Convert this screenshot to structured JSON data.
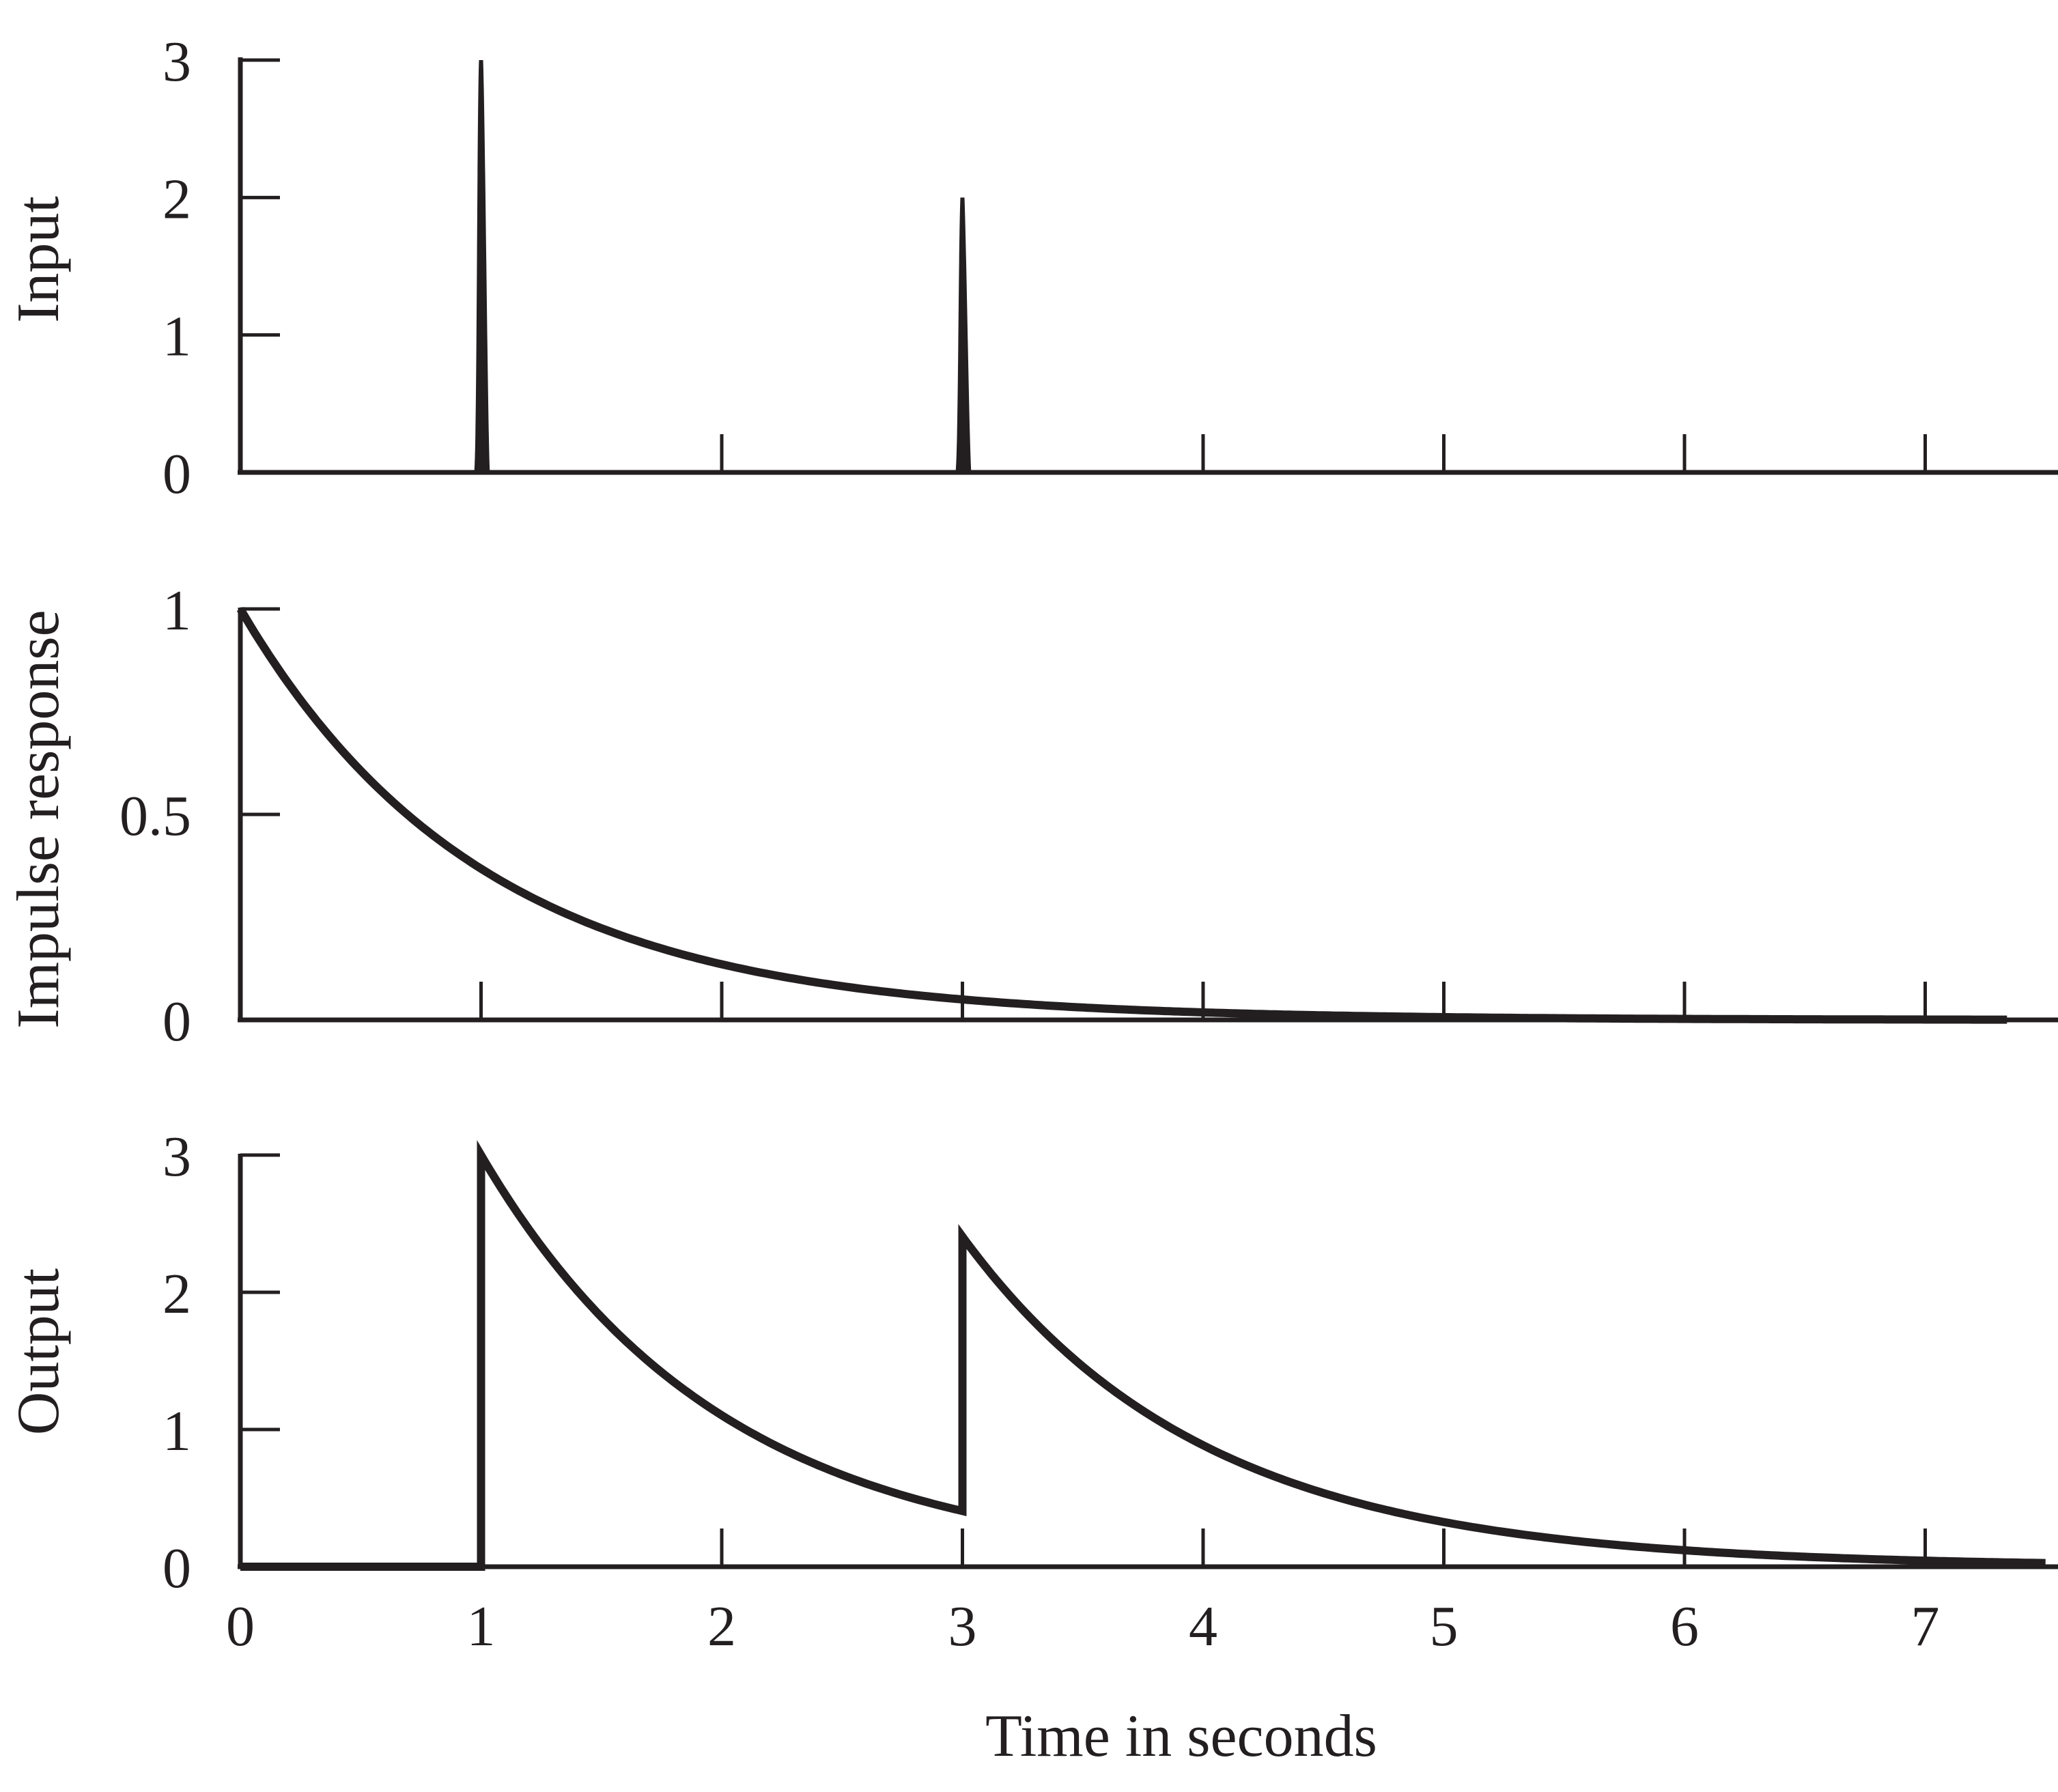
{
  "chart_data": [
    {
      "type": "line",
      "ylabel": "Input",
      "xlim": [
        0,
        7.5
      ],
      "ylim": [
        0,
        3
      ],
      "yticks": [
        0,
        1,
        2,
        3
      ],
      "yticklabels": [
        "0",
        "1",
        "2",
        "3"
      ],
      "xticks": [
        1,
        2,
        3,
        4,
        5,
        6,
        7
      ],
      "impulses": [
        {
          "x": 1,
          "value": 3
        },
        {
          "x": 3,
          "value": 2
        }
      ],
      "grid": false
    },
    {
      "type": "line",
      "ylabel": "Impulse response",
      "xlim": [
        0,
        7.5
      ],
      "ylim": [
        0,
        1
      ],
      "yticks": [
        0,
        0.5,
        1
      ],
      "yticklabels": [
        "0",
        "0.5",
        "1"
      ],
      "xticks": [
        1,
        2,
        3,
        4,
        5,
        6,
        7
      ],
      "curve": {
        "formula": "exp(-t)",
        "t_start": 0,
        "t_end": 7.35
      },
      "grid": false
    },
    {
      "type": "line",
      "ylabel": "Output",
      "xlabel": "Time in seconds",
      "xlim": [
        0,
        7.5
      ],
      "ylim": [
        0,
        3
      ],
      "yticks": [
        0,
        1,
        2,
        3
      ],
      "yticklabels": [
        "0",
        "1",
        "2",
        "3"
      ],
      "xticks": [
        1,
        2,
        3,
        4,
        5,
        6,
        7
      ],
      "xticklabels": [
        "0",
        "1",
        "2",
        "3",
        "4",
        "5",
        "6",
        "7"
      ],
      "xticklabel_values": [
        0,
        1,
        2,
        3,
        4,
        5,
        6,
        7
      ],
      "curve": {
        "formula": "3*exp(-(t-1))*[t>=1] + 2*exp(-(t-3))*[t>=3]",
        "t_start": 0,
        "t_end": 7.5
      },
      "grid": false
    }
  ]
}
